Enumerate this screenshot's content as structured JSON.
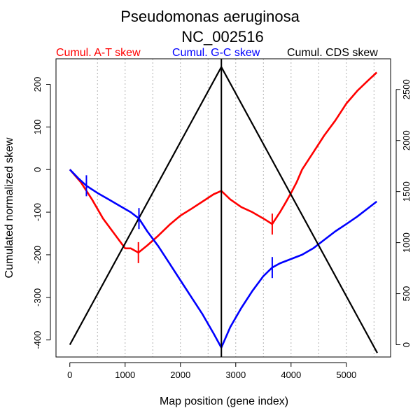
{
  "chart_data": {
    "type": "line",
    "title": "Pseudomonas aeruginosa",
    "subtitle": "NC_002516",
    "xlabel": "Map position (gene index)",
    "ylabel": "Cumulated normalized skew",
    "xlim": [
      -250,
      5800
    ],
    "ylim": [
      -440,
      260
    ],
    "y2lim": [
      -120,
      2800
    ],
    "xticks": [
      0,
      1000,
      2000,
      3000,
      4000,
      5000
    ],
    "yticks": [
      -400,
      -300,
      -200,
      -100,
      0,
      100,
      200
    ],
    "y2ticks": [
      0,
      500,
      1000,
      1500,
      2000,
      2500
    ],
    "grid": {
      "vertical_dotted_lines_at": [
        500,
        1000,
        1500,
        2000,
        2500,
        3000,
        3500,
        4000,
        4500,
        5000,
        5500
      ]
    },
    "legend": [
      {
        "label": "Cumul. A-T skew",
        "color": "#ff0000"
      },
      {
        "label": "Cumul. G-C skew",
        "color": "#0000ff"
      },
      {
        "label": "Cumul. CDS skew",
        "color": "#000000"
      }
    ],
    "vertical_line_x": 2740,
    "series": [
      {
        "name": "Cumul. A-T skew",
        "color": "#ff0000",
        "axis": "left",
        "x": [
          0,
          200,
          400,
          600,
          800,
          1000,
          1100,
          1240,
          1400,
          1600,
          1800,
          2000,
          2200,
          2400,
          2600,
          2740,
          2900,
          3100,
          3300,
          3500,
          3660,
          3800,
          3900,
          4000,
          4100,
          4200,
          4400,
          4600,
          4800,
          5000,
          5200,
          5400,
          5550
        ],
        "values": [
          0,
          -30,
          -70,
          -115,
          -150,
          -185,
          -185,
          -195,
          -178,
          -155,
          -130,
          -108,
          -92,
          -75,
          -58,
          -50,
          -70,
          -88,
          -100,
          -115,
          -128,
          -100,
          -78,
          -55,
          -30,
          0,
          40,
          80,
          115,
          155,
          185,
          210,
          228
        ]
      },
      {
        "name": "Cumul. G-C skew",
        "color": "#0000ff",
        "axis": "left",
        "x": [
          0,
          150,
          300,
          500,
          700,
          900,
          1100,
          1250,
          1400,
          1600,
          1800,
          2000,
          2200,
          2400,
          2600,
          2740,
          2900,
          3100,
          3300,
          3500,
          3660,
          3800,
          4000,
          4200,
          4400,
          4600,
          4800,
          5000,
          5200,
          5400,
          5550
        ],
        "values": [
          0,
          -20,
          -38,
          -55,
          -70,
          -85,
          -100,
          -115,
          -145,
          -180,
          -220,
          -260,
          -300,
          -340,
          -385,
          -418,
          -370,
          -325,
          -285,
          -250,
          -230,
          -220,
          -210,
          -200,
          -185,
          -165,
          -145,
          -128,
          -110,
          -90,
          -75
        ]
      },
      {
        "name": "Cumul. CDS skew",
        "color": "#000000",
        "axis": "right",
        "x": [
          0,
          2740,
          5560
        ],
        "values": [
          0,
          2720,
          -80
        ]
      }
    ],
    "markers": [
      {
        "series": "Cumul. G-C skew",
        "x": 300,
        "y": -38
      },
      {
        "series": "Cumul. G-C skew",
        "x": 1250,
        "y": -115
      },
      {
        "series": "Cumul. G-C skew",
        "x": 3660,
        "y": -230
      },
      {
        "series": "Cumul. A-T skew",
        "x": 1240,
        "y": -195
      },
      {
        "series": "Cumul. A-T skew",
        "x": 3660,
        "y": -128
      }
    ]
  }
}
